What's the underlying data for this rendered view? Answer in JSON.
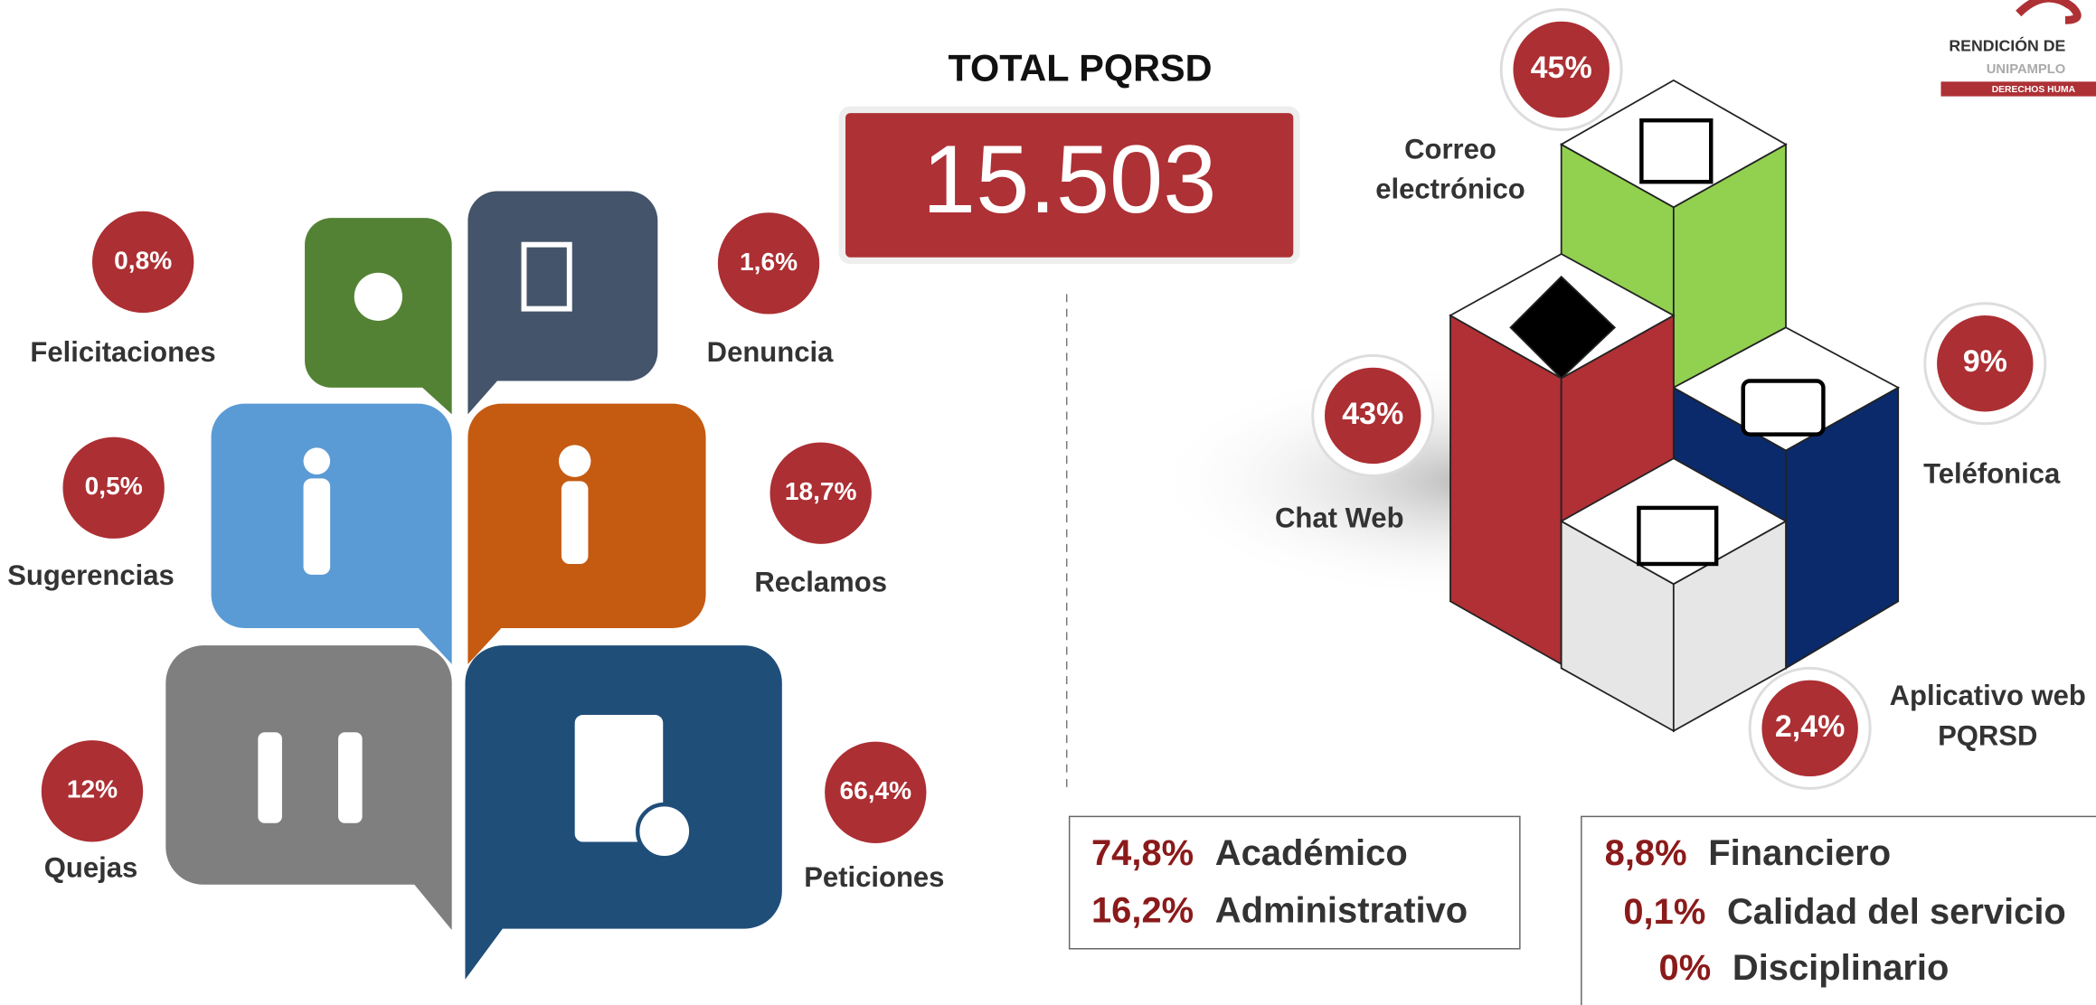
{
  "header": {
    "title": "TOTAL PQRSD",
    "total": "15.503"
  },
  "logo": {
    "lines": [
      "RENDICIÓN DE",
      "UNIPAMPLO",
      "DERECHOS HUMA"
    ]
  },
  "types": [
    {
      "label": "Felicitaciones",
      "percent": "0,8%"
    },
    {
      "label": "Denuncia",
      "percent": "1,6%"
    },
    {
      "label": "Sugerencias",
      "percent": "0,5%"
    },
    {
      "label": "Reclamos",
      "percent": "18,7%"
    },
    {
      "label": "Quejas",
      "percent": "12%"
    },
    {
      "label": "Peticiones",
      "percent": "66,4%"
    }
  ],
  "channels": [
    {
      "label": [
        "Correo",
        "electrónico"
      ],
      "percent": "45%"
    },
    {
      "label": [
        "Chat Web"
      ],
      "percent": "43%"
    },
    {
      "label": [
        "Teléfonica"
      ],
      "percent": "9%"
    },
    {
      "label": [
        "Aplicativo web",
        "PQRSD"
      ],
      "percent": "2,4%"
    }
  ],
  "areas": [
    [
      {
        "percent": "74,8%",
        "label": "Académico"
      },
      {
        "percent": "16,2%",
        "label": "Administrativo"
      }
    ],
    [
      {
        "percent": "8,8%",
        "label": "Financiero"
      },
      {
        "percent": "0,1%",
        "label": "Calidad del servicio"
      },
      {
        "percent": "0%",
        "label": "Disciplinario"
      }
    ]
  ]
}
